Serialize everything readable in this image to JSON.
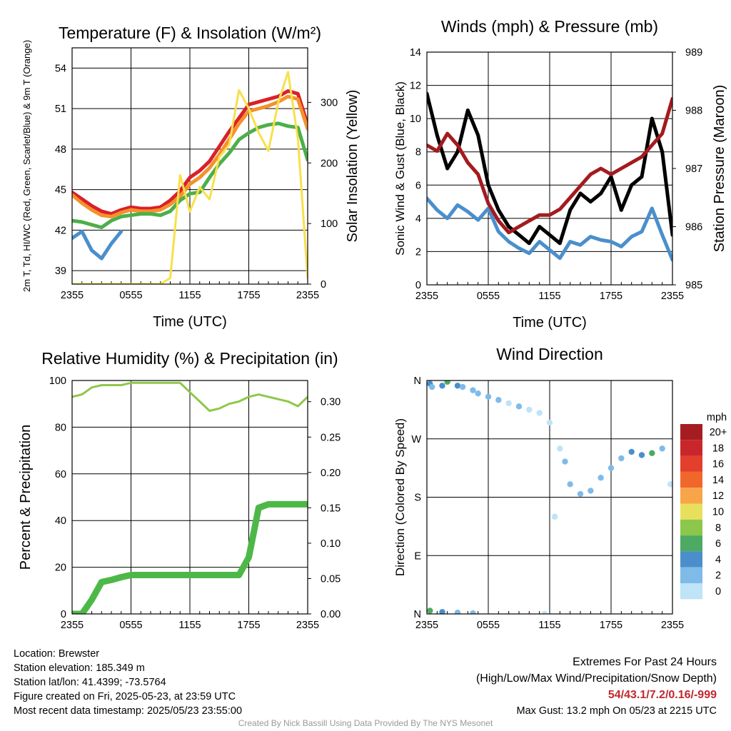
{
  "chart_data": [
    {
      "type": "line",
      "title": "Temperature (F) & Insolation (W/m²)",
      "xlabel": "Time (UTC)",
      "ylabel": "2m T, Td, HI/WC (Red, Green, Scarlet/Blue) & 9m T (Orange)",
      "y2label": "Solar Insolation (Yellow)",
      "x_ticks": [
        "2355",
        "0555",
        "1155",
        "1755",
        "2355"
      ],
      "ylim": [
        38,
        55.5
      ],
      "y_ticks": [
        39,
        42,
        45,
        48,
        51,
        54
      ],
      "y2lim": [
        0,
        390
      ],
      "y2_ticks": [
        0,
        100,
        200,
        300
      ],
      "x_hours": [
        0,
        1,
        2,
        3,
        4,
        5,
        6,
        7,
        8,
        9,
        10,
        11,
        12,
        13,
        14,
        15,
        16,
        17,
        18,
        19,
        20,
        21,
        22,
        23,
        24
      ],
      "series": [
        {
          "name": "2m T",
          "color": "#d92128",
          "values": [
            44.8,
            44.3,
            43.8,
            43.4,
            43.2,
            43.5,
            43.7,
            43.6,
            43.6,
            43.7,
            44.2,
            44.9,
            45.9,
            46.4,
            47.1,
            48.2,
            49.3,
            50.3,
            51.3,
            51.5,
            51.7,
            51.9,
            52.3,
            52.1,
            49.8
          ]
        },
        {
          "name": "9m T",
          "color": "#f5912c",
          "values": [
            44.6,
            44.0,
            43.5,
            43.1,
            43.0,
            43.3,
            43.5,
            43.4,
            43.4,
            43.5,
            43.9,
            44.5,
            45.4,
            45.9,
            46.6,
            47.6,
            48.7,
            49.9,
            50.8,
            51.0,
            51.2,
            51.5,
            51.9,
            51.7,
            49.5
          ]
        },
        {
          "name": "Td",
          "color": "#4daf4a",
          "values": [
            42.7,
            42.6,
            42.4,
            42.2,
            42.7,
            43.0,
            43.1,
            43.2,
            43.2,
            43.1,
            43.4,
            44.2,
            44.7,
            44.8,
            45.9,
            46.9,
            47.7,
            48.7,
            49.2,
            49.6,
            49.8,
            49.9,
            49.7,
            49.6,
            47.2
          ]
        },
        {
          "name": "Sonic wind chill",
          "color": "#4a8fcc",
          "values": [
            41.4,
            41.9,
            40.5,
            39.9,
            41.0,
            41.9,
            null,
            42.1,
            null,
            null,
            null,
            null,
            45.1,
            null,
            null,
            null,
            null,
            null,
            null,
            null,
            null,
            50.8,
            null,
            null,
            null
          ]
        },
        {
          "name": "Solar Insolation",
          "color": "#f7e04b",
          "axis": "y2",
          "values": [
            0,
            0,
            0,
            0,
            0,
            0,
            0,
            0,
            0,
            0,
            10,
            180,
            120,
            160,
            140,
            210,
            230,
            320,
            290,
            250,
            220,
            300,
            350,
            240,
            10
          ]
        }
      ]
    },
    {
      "type": "line",
      "title": "Winds (mph) & Pressure (mb)",
      "xlabel": "Time (UTC)",
      "ylabel": "Sonic Wind & Gust (Blue, Black)",
      "y2label": "Station Pressure (Maroon)",
      "x_ticks": [
        "2355",
        "0555",
        "1155",
        "1755",
        "2355"
      ],
      "ylim": [
        0,
        14
      ],
      "y_ticks": [
        0,
        2,
        4,
        6,
        8,
        10,
        12,
        14
      ],
      "y2lim": [
        985,
        989
      ],
      "y2_ticks": [
        985,
        986,
        987,
        988,
        989
      ],
      "x_hours": [
        0,
        1,
        2,
        3,
        4,
        5,
        6,
        7,
        8,
        9,
        10,
        11,
        12,
        13,
        14,
        15,
        16,
        17,
        18,
        19,
        20,
        21,
        22,
        23,
        24
      ],
      "series": [
        {
          "name": "Sonic Wind",
          "color": "#4a8fcc",
          "values": [
            5.2,
            4.5,
            4.0,
            4.8,
            4.4,
            3.9,
            4.6,
            3.2,
            2.6,
            2.2,
            1.9,
            2.6,
            2.1,
            1.6,
            2.6,
            2.4,
            2.9,
            2.7,
            2.6,
            2.3,
            2.9,
            3.2,
            4.6,
            3.0,
            1.5
          ]
        },
        {
          "name": "Gust",
          "color": "#000000",
          "values": [
            11.5,
            9.0,
            7.0,
            8.0,
            10.5,
            9.0,
            6.0,
            4.5,
            3.5,
            3.0,
            2.5,
            3.5,
            3.0,
            2.5,
            4.5,
            5.5,
            5.0,
            5.5,
            6.5,
            4.5,
            6.0,
            6.5,
            10.0,
            8.0,
            3.0
          ]
        },
        {
          "name": "Station Pressure",
          "color": "#a31b1f",
          "axis": "y2",
          "values": [
            987.4,
            987.3,
            987.6,
            987.4,
            987.1,
            986.9,
            986.4,
            986.1,
            985.9,
            986.0,
            986.1,
            986.2,
            986.2,
            986.3,
            986.5,
            986.7,
            986.9,
            987.0,
            986.9,
            987.0,
            987.1,
            987.2,
            987.4,
            987.6,
            988.2
          ]
        }
      ]
    },
    {
      "type": "line",
      "title": "Relative Humidity (%) & Precipitation (in)",
      "ylabel": "Percent & Precipitation",
      "x_ticks": [
        "2355",
        "0555",
        "1155",
        "1755",
        "2355"
      ],
      "ylim": [
        0,
        100
      ],
      "y_ticks": [
        0,
        20,
        40,
        60,
        80,
        100
      ],
      "y2lim": [
        0,
        0.33
      ],
      "y2_ticks": [
        0.0,
        0.05,
        0.1,
        0.15,
        0.2,
        0.25,
        0.3
      ],
      "y2_tick_labels": [
        "0.00",
        "0.05",
        "0.10",
        "0.15",
        "0.20",
        "0.25",
        "0.30"
      ],
      "x_hours": [
        0,
        1,
        2,
        3,
        4,
        5,
        6,
        7,
        8,
        9,
        10,
        11,
        12,
        13,
        14,
        15,
        16,
        17,
        18,
        19,
        20,
        21,
        22,
        23,
        24
      ],
      "series": [
        {
          "name": "Relative Humidity",
          "color": "#8fc74a",
          "values": [
            93,
            94,
            97,
            98,
            98,
            98,
            99,
            99,
            99,
            99,
            99,
            99,
            95,
            91,
            87,
            88,
            90,
            91,
            93,
            94,
            93,
            92,
            91,
            89,
            93
          ]
        },
        {
          "name": "Precipitation",
          "color": "#4db848",
          "axis": "y2",
          "values": [
            0.0,
            0.0,
            0.02,
            0.045,
            0.048,
            0.052,
            0.055,
            0.055,
            0.055,
            0.055,
            0.055,
            0.055,
            0.055,
            0.055,
            0.055,
            0.055,
            0.055,
            0.055,
            0.08,
            0.15,
            0.155,
            0.155,
            0.155,
            0.155,
            0.155
          ]
        }
      ]
    },
    {
      "type": "scatter",
      "title": "Wind Direction",
      "ylabel": "Direction (Colored By Speed)",
      "x_ticks": [
        "2355",
        "0555",
        "1155",
        "1755",
        "2355"
      ],
      "y_ticks": [
        "N",
        "E",
        "S",
        "W",
        "N"
      ],
      "ylim": [
        0,
        360
      ],
      "x_hours": [
        0.3,
        0.5,
        1.5,
        2.0,
        3.0,
        3.5,
        4.5,
        5.0,
        6.0,
        7.0,
        8.0,
        9.0,
        10.0,
        11.0,
        12.0,
        13.0,
        13.5,
        14.0,
        15.0,
        16.0,
        17.0,
        18.0,
        19.0,
        20.0,
        21.0,
        22.0,
        23.0,
        23.8,
        0.3,
        1.5,
        3.0,
        4.5,
        11.5,
        12.5
      ],
      "values": [
        355,
        350,
        352,
        358,
        352,
        350,
        345,
        340,
        335,
        330,
        325,
        320,
        315,
        310,
        295,
        255,
        235,
        200,
        185,
        190,
        210,
        225,
        240,
        250,
        245,
        248,
        255,
        200,
        5,
        3,
        2,
        1,
        0,
        150
      ],
      "speeds": [
        4,
        3,
        5,
        6,
        4,
        3,
        2,
        3,
        2,
        2,
        1,
        2,
        1,
        1,
        1,
        1,
        2,
        3,
        3,
        2,
        3,
        3,
        3,
        4,
        5,
        6,
        3,
        1,
        6,
        4,
        3,
        3,
        1,
        1
      ],
      "legend": {
        "title": "mph",
        "labels": [
          "20+",
          "18",
          "16",
          "14",
          "12",
          "10",
          "8",
          "6",
          "4",
          "2",
          "0"
        ],
        "colors": [
          "#a51d20",
          "#c8262b",
          "#e33f2c",
          "#f1672b",
          "#f8a54a",
          "#e8e05d",
          "#8cc64b",
          "#4caa62",
          "#4a8fcc",
          "#7fbbe9",
          "#bfe3f7"
        ]
      }
    }
  ],
  "info_left": [
    "Location: Brewster",
    "Station elevation: 185.349 m",
    "Station lat/lon: 41.4399; -73.5764",
    "Figure created on Fri, 2025-05-23, at 23:59 UTC",
    "Most recent data timestamp: 2025/05/23 23:55:00"
  ],
  "info_right": {
    "heading": "Extremes For Past 24 Hours",
    "subheading": "(High/Low/Max Wind/Precipitation/Snow Depth)",
    "extremes": "54/43.1/7.2/0.16/-999",
    "gust": "Max Gust: 13.2 mph On 05/23 at 2215 UTC"
  },
  "credit": "Created By Nick Bassill Using Data Provided By The NYS Mesonet"
}
